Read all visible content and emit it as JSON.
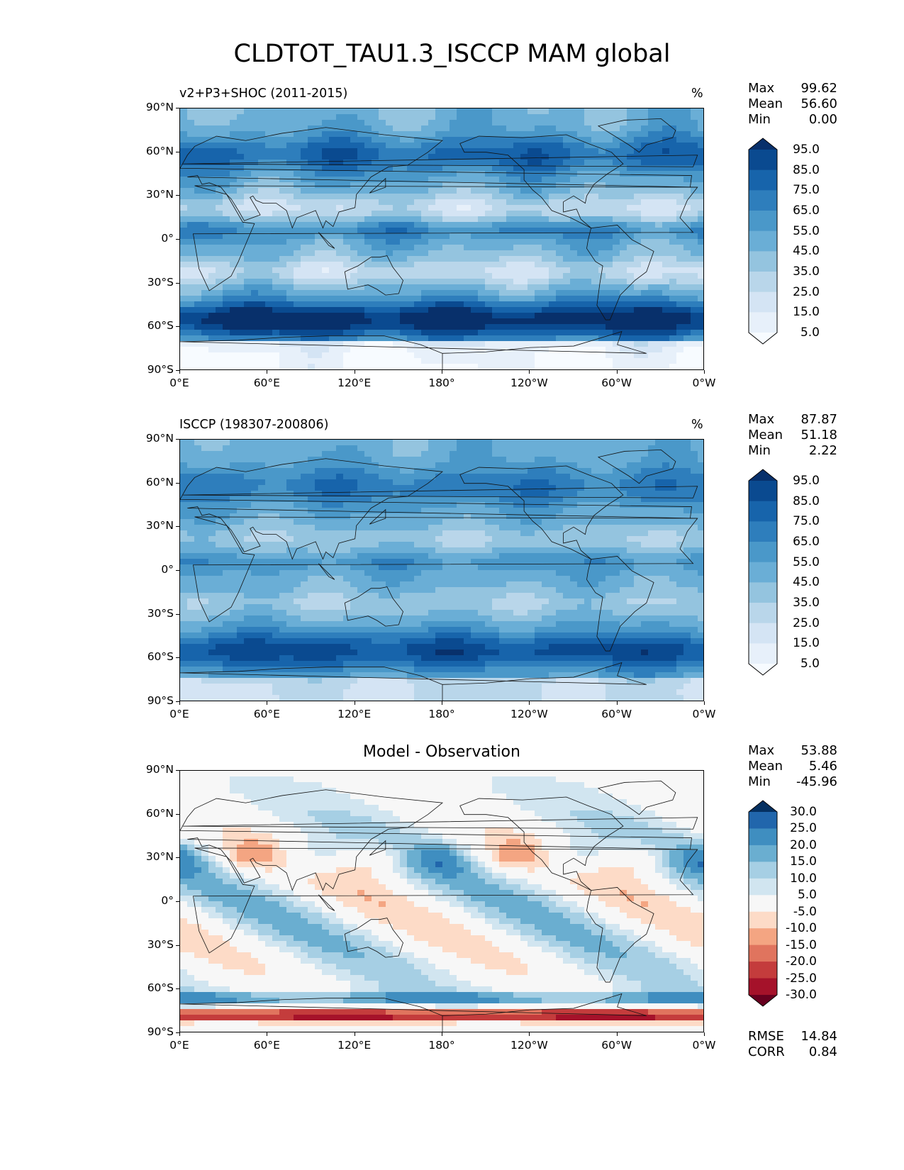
{
  "figure": {
    "title": "CLDTOT_TAU1.3_ISCCP MAM global"
  },
  "axes": {
    "lat_ticks": [
      "90°N",
      "60°N",
      "30°N",
      "0°",
      "30°S",
      "60°S",
      "90°S"
    ],
    "lon_ticks": [
      "0°E",
      "60°E",
      "120°E",
      "180°",
      "120°W",
      "60°W",
      "0°W"
    ]
  },
  "panels": [
    {
      "title": "v2+P3+SHOC (2011-2015)",
      "units": "%",
      "stats": [
        {
          "label": "Max",
          "value": "99.62"
        },
        {
          "label": "Mean",
          "value": "56.60"
        },
        {
          "label": "Min",
          "value": "0.00"
        }
      ],
      "colorbar": {
        "labels": [
          "95.0",
          "85.0",
          "75.0",
          "65.0",
          "55.0",
          "45.0",
          "35.0",
          "25.0",
          "15.0",
          "5.0"
        ],
        "colors": [
          "#08306b",
          "#0a4a90",
          "#1764ab",
          "#2e7ebc",
          "#4a98c9",
          "#6aaed6",
          "#94c4df",
          "#b9d6ea",
          "#d4e4f4",
          "#e7f0fa",
          "#f7fbff"
        ]
      }
    },
    {
      "title": "ISCCP (198307-200806)",
      "units": "%",
      "stats": [
        {
          "label": "Max",
          "value": "87.87"
        },
        {
          "label": "Mean",
          "value": "51.18"
        },
        {
          "label": "Min",
          "value": "2.22"
        }
      ],
      "colorbar": {
        "labels": [
          "95.0",
          "85.0",
          "75.0",
          "65.0",
          "55.0",
          "45.0",
          "35.0",
          "25.0",
          "15.0",
          "5.0"
        ],
        "colors": [
          "#08306b",
          "#0a4a90",
          "#1764ab",
          "#2e7ebc",
          "#4a98c9",
          "#6aaed6",
          "#94c4df",
          "#b9d6ea",
          "#d4e4f4",
          "#e7f0fa",
          "#f7fbff"
        ]
      }
    },
    {
      "title": "Model - Observation",
      "units": "",
      "stats": [
        {
          "label": "Max",
          "value": "53.88"
        },
        {
          "label": "Mean",
          "value": "5.46"
        },
        {
          "label": "Min",
          "value": "-45.96"
        }
      ],
      "extra_stats": [
        {
          "label": "RMSE",
          "value": "14.84"
        },
        {
          "label": "CORR",
          "value": "0.84"
        }
      ],
      "colorbar": {
        "labels": [
          "30.0",
          "25.0",
          "20.0",
          "15.0",
          "10.0",
          "5.0",
          "-5.0",
          "-10.0",
          "-15.0",
          "-20.0",
          "-25.0",
          "-30.0"
        ],
        "colors": [
          "#053061",
          "#2166ac",
          "#3f8ec0",
          "#6aaed0",
          "#a6cfe4",
          "#d1e5f0",
          "#f7f7f7",
          "#fddbc7",
          "#f4a582",
          "#e0745e",
          "#c43c3c",
          "#a5122a",
          "#67001f"
        ]
      }
    }
  ]
}
